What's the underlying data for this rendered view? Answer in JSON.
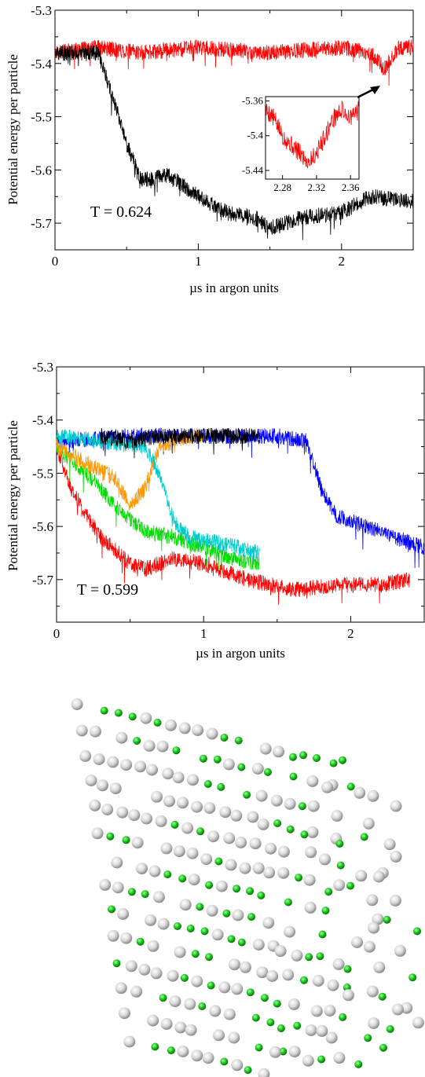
{
  "chart_data": [
    {
      "type": "line",
      "xlabel": "µs in argon units",
      "ylabel": "Potential energy per particle",
      "xlim": [
        0,
        2.5
      ],
      "ylim": [
        -5.75,
        -5.3
      ],
      "xticks": [
        0,
        1,
        2
      ],
      "yticks": [
        -5.3,
        -5.4,
        -5.5,
        -5.6,
        -5.7
      ],
      "annotation": "T = 0.624",
      "series": [
        {
          "color": "#ff0000",
          "x": [
            0,
            0.3,
            0.6,
            1.0,
            1.5,
            2.0,
            2.2,
            2.3,
            2.35,
            2.4,
            2.5
          ],
          "values": [
            -5.38,
            -5.37,
            -5.38,
            -5.37,
            -5.38,
            -5.37,
            -5.38,
            -5.41,
            -5.39,
            -5.37,
            -5.37
          ]
        },
        {
          "color": "#000000",
          "x": [
            0,
            0.3,
            0.4,
            0.5,
            0.6,
            0.8,
            1.0,
            1.2,
            1.4,
            1.5,
            1.7,
            2.0,
            2.2,
            2.5
          ],
          "values": [
            -5.38,
            -5.38,
            -5.46,
            -5.55,
            -5.62,
            -5.61,
            -5.65,
            -5.68,
            -5.69,
            -5.71,
            -5.69,
            -5.68,
            -5.65,
            -5.66
          ]
        }
      ],
      "inset": {
        "xlim": [
          2.26,
          2.37
        ],
        "ylim": [
          -5.45,
          -5.355
        ],
        "xticks": [
          2.28,
          2.32,
          2.36
        ],
        "yticks": [
          -5.36,
          -5.4,
          -5.44
        ],
        "series": [
          {
            "color": "#ff0000",
            "x": [
              2.26,
              2.27,
              2.28,
              2.29,
              2.3,
              2.31,
              2.32,
              2.33,
              2.34,
              2.35,
              2.36,
              2.37
            ],
            "values": [
              -5.37,
              -5.38,
              -5.4,
              -5.41,
              -5.42,
              -5.43,
              -5.42,
              -5.4,
              -5.38,
              -5.37,
              -5.38,
              -5.37
            ]
          }
        ]
      }
    },
    {
      "type": "line",
      "xlabel": "µs in argon units",
      "ylabel": "Potential energy per particle",
      "xlim": [
        0,
        2.5
      ],
      "ylim": [
        -5.78,
        -5.3
      ],
      "xticks": [
        0,
        1,
        2
      ],
      "yticks": [
        -5.3,
        -5.4,
        -5.5,
        -5.6,
        -5.7
      ],
      "annotation": "T = 0.599",
      "series": [
        {
          "color": "#0000ff",
          "x": [
            0,
            0.5,
            1.0,
            1.5,
            1.7,
            1.8,
            1.9,
            2.1,
            2.3,
            2.5
          ],
          "values": [
            -5.44,
            -5.43,
            -5.43,
            -5.43,
            -5.44,
            -5.53,
            -5.58,
            -5.6,
            -5.62,
            -5.64
          ]
        },
        {
          "color": "#ff0000",
          "x": [
            0,
            0.1,
            0.3,
            0.5,
            0.6,
            0.8,
            1.0,
            1.3,
            1.6,
            1.9,
            2.2,
            2.4
          ],
          "values": [
            -5.45,
            -5.53,
            -5.62,
            -5.67,
            -5.68,
            -5.66,
            -5.67,
            -5.7,
            -5.72,
            -5.71,
            -5.71,
            -5.7
          ]
        },
        {
          "color": "#00dd00",
          "x": [
            0,
            0.2,
            0.4,
            0.6,
            0.8,
            1.0,
            1.2,
            1.38
          ],
          "values": [
            -5.45,
            -5.5,
            -5.56,
            -5.61,
            -5.62,
            -5.64,
            -5.66,
            -5.67
          ]
        },
        {
          "color": "#ff9900",
          "x": [
            0,
            0.2,
            0.4,
            0.5,
            0.6,
            0.7,
            0.9,
            1.0
          ],
          "values": [
            -5.45,
            -5.48,
            -5.51,
            -5.56,
            -5.53,
            -5.45,
            -5.43,
            -5.43
          ]
        },
        {
          "color": "#00cccc",
          "x": [
            0,
            0.3,
            0.6,
            0.7,
            0.8,
            0.9,
            1.1,
            1.38
          ],
          "values": [
            -5.43,
            -5.44,
            -5.45,
            -5.5,
            -5.59,
            -5.62,
            -5.63,
            -5.65
          ]
        },
        {
          "color": "#000000",
          "x": [
            0.3,
            0.5,
            0.7,
            0.9,
            1.1,
            1.38
          ],
          "values": [
            -5.43,
            -5.44,
            -5.43,
            -5.43,
            -5.43,
            -5.43
          ]
        }
      ]
    }
  ]
}
